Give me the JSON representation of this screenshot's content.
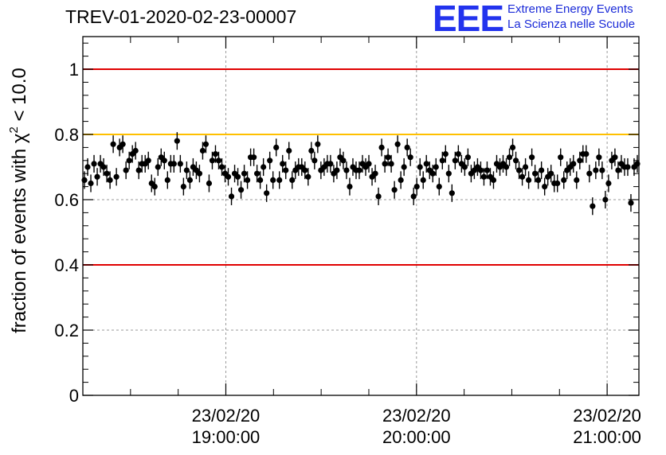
{
  "header": {
    "title": "TREV-01-2020-02-23-00007",
    "logo_mark": "EEE",
    "logo_line1": "Extreme Energy Events",
    "logo_line2": "La Scienza nelle Scuole"
  },
  "chart_data": {
    "type": "scatter",
    "title": "TREV-01-2020-02-23-00007",
    "xlabel": "",
    "ylabel": "fraction of events with χ² < 10.0",
    "ylabel_parts": {
      "main": "fraction of events with χ",
      "sup": "2",
      "tail": " < 10.0"
    },
    "xlim": [
      "23/02/20 18:15:00",
      "23/02/20 21:10:00"
    ],
    "ylim": [
      0,
      1.1
    ],
    "yticks": [
      "0",
      "0.2",
      "0.4",
      "0.6",
      "0.8",
      "1"
    ],
    "yticks_values": [
      0,
      0.2,
      0.4,
      0.6,
      0.8,
      1.0
    ],
    "xticks": [
      {
        "date": "23/02/20",
        "time": "19:00:00"
      },
      {
        "date": "23/02/20",
        "time": "20:00:00"
      },
      {
        "date": "23/02/20",
        "time": "21:00:00"
      }
    ],
    "grid": true,
    "reference_lines": [
      {
        "y": 1.0,
        "color": "#e00000"
      },
      {
        "y": 0.8,
        "color": "#ffc000"
      },
      {
        "y": 0.4,
        "color": "#e00000"
      }
    ],
    "error": 0.027,
    "marker_color": "#000000",
    "series": [
      {
        "values": [
          0.66,
          0.7,
          0.65,
          0.71,
          0.67,
          0.71,
          0.7,
          0.68,
          0.66,
          0.77,
          0.67,
          0.76,
          0.77,
          0.69,
          0.72,
          0.74,
          0.75,
          0.69,
          0.71,
          0.71,
          0.72,
          0.65,
          0.64,
          0.7,
          0.73,
          0.72,
          0.66,
          0.71,
          0.71,
          0.78,
          0.71,
          0.64,
          0.69,
          0.66,
          0.7,
          0.69,
          0.68,
          0.75,
          0.77,
          0.65,
          0.72,
          0.74,
          0.72,
          0.7,
          0.68,
          0.67,
          0.61,
          0.68,
          0.67,
          0.63,
          0.68,
          0.66,
          0.73,
          0.73,
          0.68,
          0.66,
          0.7,
          0.62,
          0.72,
          0.66,
          0.76,
          0.66,
          0.71,
          0.69,
          0.75,
          0.66,
          0.69,
          0.7,
          0.7,
          0.69,
          0.67,
          0.75,
          0.72,
          0.77,
          0.69,
          0.7,
          0.71,
          0.71,
          0.68,
          0.69,
          0.73,
          0.72,
          0.69,
          0.64,
          0.7,
          0.69,
          0.69,
          0.71,
          0.7,
          0.71,
          0.67,
          0.68,
          0.61,
          0.76,
          0.71,
          0.73,
          0.71,
          0.63,
          0.77,
          0.66,
          0.7,
          0.76,
          0.73,
          0.61,
          0.64,
          0.7,
          0.66,
          0.71,
          0.69,
          0.68,
          0.7,
          0.64,
          0.72,
          0.74,
          0.68,
          0.62,
          0.72,
          0.74,
          0.71,
          0.7,
          0.73,
          0.68,
          0.69,
          0.7,
          0.69,
          0.67,
          0.69,
          0.67,
          0.66,
          0.71,
          0.7,
          0.71,
          0.7,
          0.73,
          0.76,
          0.72,
          0.69,
          0.67,
          0.7,
          0.66,
          0.73,
          0.68,
          0.66,
          0.69,
          0.64,
          0.67,
          0.68,
          0.65,
          0.65,
          0.73,
          0.66,
          0.69,
          0.7,
          0.71,
          0.66,
          0.72,
          0.74,
          0.74,
          0.68,
          0.58,
          0.69,
          0.73,
          0.69,
          0.6,
          0.65,
          0.72,
          0.73,
          0.69,
          0.71,
          0.7,
          0.7,
          0.59,
          0.7,
          0.71
        ]
      }
    ]
  }
}
